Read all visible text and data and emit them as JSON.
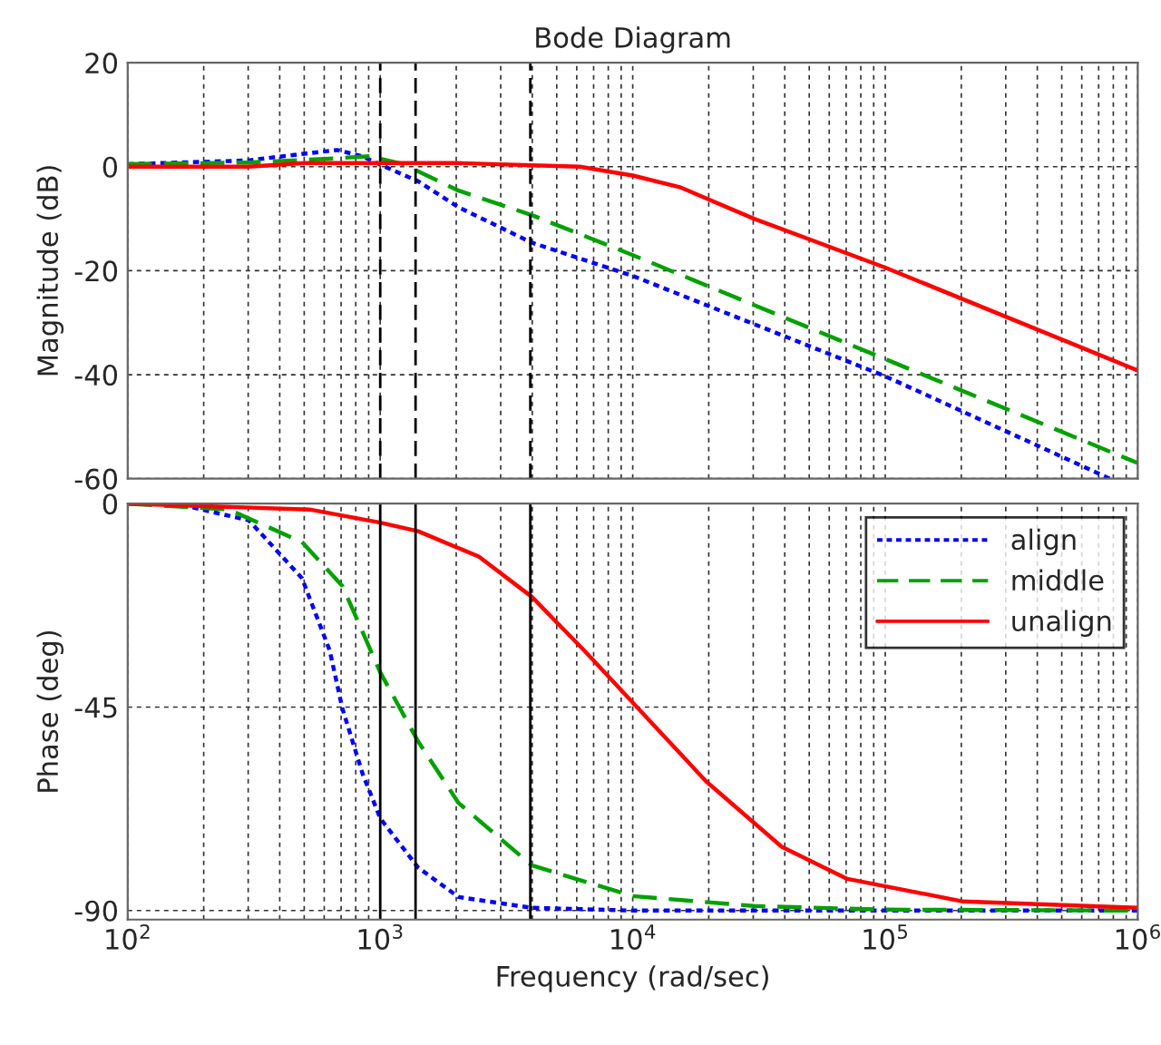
{
  "chart_data": [
    {
      "type": "line",
      "title": "Bode Diagram",
      "ylabel": "Magnitude (dB)",
      "log": "x",
      "grid": true,
      "tick_labels": "y",
      "xlim": [
        100,
        1000000
      ],
      "xticks": [
        {
          "value": 100,
          "label": null
        },
        {
          "value": 1000,
          "label": null
        },
        {
          "value": 10000,
          "label": null
        },
        {
          "value": 100000,
          "label": null
        },
        {
          "value": 1000000,
          "label": null
        }
      ],
      "ylim": [
        -60,
        20
      ],
      "yticks": [
        -60,
        -40,
        -20,
        0,
        20
      ],
      "ref_lines": [
        {
          "axis": "x",
          "value": 1000,
          "color": "#000000",
          "line_style": "dashed"
        },
        {
          "axis": "x",
          "value": 1380,
          "color": "#000000",
          "line_style": "dashed"
        },
        {
          "axis": "x",
          "value": 3930,
          "color": "#000000",
          "line_style": "dashed"
        }
      ],
      "series": [
        {
          "color": "#0000ff",
          "line_style": "dotted",
          "x": [
            100,
            300,
            500,
            676,
            850,
            1000,
            1413,
            2042,
            3981,
            10000,
            100000,
            776000
          ],
          "values": [
            0.5,
            1.2,
            2.5,
            3.2,
            2,
            0.4,
            -2.8,
            -7.8,
            -14.6,
            -21,
            -40.3,
            -60
          ]
        },
        {
          "color": "#00a000",
          "line_style": "dashed",
          "x": [
            100,
            300,
            600,
            912,
            1230,
            2042,
            3981,
            10000,
            100000,
            1000000
          ],
          "values": [
            0.5,
            0.8,
            1.5,
            2,
            0.5,
            -4.6,
            -9.3,
            -17,
            -37,
            -57
          ]
        },
        {
          "color": "#ff0000",
          "line_style": "solid",
          "x": [
            100,
            300,
            500,
            2000,
            6170,
            10000,
            15500,
            30200,
            100000,
            1000000
          ],
          "values": [
            0,
            0,
            0.7,
            0.7,
            0,
            -1.7,
            -4,
            -10,
            -19.4,
            -39.2
          ]
        }
      ]
    },
    {
      "type": "line",
      "xlabel": "Frequency (rad/sec)",
      "ylabel": "Phase (deg)",
      "log": "x",
      "grid": true,
      "legend": "top right",
      "xlim": [
        100,
        1000000
      ],
      "xticks": [
        {
          "value": 100,
          "label": "10$^{2}$"
        },
        {
          "value": 1000,
          "label": "10$^{3}$"
        },
        {
          "value": 10000,
          "label": "10$^{4}$"
        },
        {
          "value": 100000,
          "label": "10$^{5}$"
        },
        {
          "value": 1000000,
          "label": "10$^{6}$"
        }
      ],
      "ylim": [
        -92,
        0
      ],
      "yticks": [
        {
          "value": -90,
          "label": "-90"
        },
        {
          "value": -45,
          "label": "-45"
        },
        0
      ],
      "ref_lines": [
        {
          "axis": "x",
          "value": 1000,
          "color": "#000000",
          "line_style": "solid"
        },
        {
          "axis": "x",
          "value": 1380,
          "color": "#000000",
          "line_style": "solid"
        },
        {
          "axis": "x",
          "value": 3930,
          "color": "#000000",
          "line_style": "solid"
        }
      ],
      "series": [
        {
          "name": "align",
          "color": "#0000ff",
          "line_style": "dotted",
          "x": [
            100,
            155,
            302,
            490,
            631,
            708,
            851,
            1000,
            1413,
            2042,
            3981,
            10000,
            1000000
          ],
          "values": [
            0,
            0,
            -3.7,
            -16.5,
            -32.5,
            -45.3,
            -59.7,
            -69.6,
            -80.5,
            -87,
            -89.4,
            -90,
            -90
          ]
        },
        {
          "name": "middle",
          "color": "#00a000",
          "line_style": "dashed",
          "x": [
            100,
            251,
            490,
            708,
            1000,
            1413,
            2042,
            3981,
            10000,
            30200,
            100000,
            1000000
          ],
          "values": [
            0,
            -1.3,
            -8.5,
            -18.2,
            -37.3,
            -52.6,
            -66.2,
            -80,
            -86.8,
            -89,
            -89.8,
            -90
          ]
        },
        {
          "name": "unalign",
          "color": "#ff0000",
          "line_style": "solid",
          "x": [
            100,
            525,
            1000,
            1413,
            2455,
            3981,
            6457,
            11220,
            19500,
            38900,
            70800,
            204000,
            1000000
          ],
          "values": [
            0,
            -1.3,
            -4.2,
            -6.1,
            -11.7,
            -20.6,
            -32.6,
            -47,
            -61.4,
            -75.9,
            -83,
            -88,
            -89.4
          ]
        }
      ]
    }
  ]
}
